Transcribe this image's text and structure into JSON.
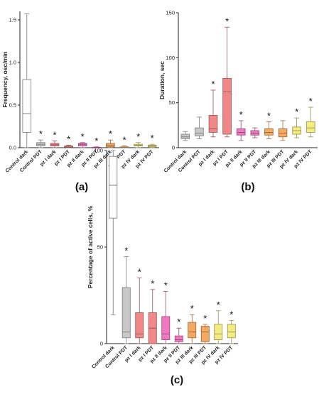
{
  "chart_data": [
    {
      "type": "box",
      "panel_label": "(a)",
      "ylabel": "Frequency, osc/min",
      "ylim": [
        0,
        1.6
      ],
      "yticks": [
        "0.0",
        "0.5",
        "1.0",
        "1.5"
      ],
      "ytick_values": [
        0,
        0.5,
        1.0,
        1.5
      ],
      "categories": [
        "Control dark",
        "Control PDT",
        "pz I dark",
        "pz I PDT",
        "pz II dark",
        "pz II PDT",
        "pz III dark",
        "pz III PDT",
        "pz IV dark",
        "pz IV PDT"
      ],
      "colors": [
        "#ffffff",
        "#c8c8c8",
        "#f08888",
        "#f08888",
        "#f078c0",
        "#f078c0",
        "#f4a860",
        "#f4a860",
        "#f4ec80",
        "#f4ec80"
      ],
      "boxes": [
        {
          "min": 0.0,
          "q1": 0.18,
          "median": 0.4,
          "q3": 0.8,
          "max": 1.57
        },
        {
          "min": 0.0,
          "q1": 0.02,
          "median": 0.04,
          "q3": 0.06,
          "max": 0.09
        },
        {
          "min": 0.0,
          "q1": 0.02,
          "median": 0.035,
          "q3": 0.05,
          "max": 0.08
        },
        {
          "min": 0.0,
          "q1": 0.005,
          "median": 0.01,
          "q3": 0.02,
          "max": 0.03
        },
        {
          "min": 0.0,
          "q1": 0.02,
          "median": 0.04,
          "q3": 0.05,
          "max": 0.06
        },
        {
          "min": 0.0,
          "q1": 0.0,
          "median": 0.0,
          "q3": 0.005,
          "max": 0.01
        },
        {
          "min": 0.0,
          "q1": 0.01,
          "median": 0.03,
          "q3": 0.05,
          "max": 0.09
        },
        {
          "min": 0.0,
          "q1": 0.0,
          "median": 0.005,
          "q3": 0.01,
          "max": 0.02
        },
        {
          "min": 0.0,
          "q1": 0.02,
          "median": 0.03,
          "q3": 0.04,
          "max": 0.06
        },
        {
          "min": 0.0,
          "q1": 0.01,
          "median": 0.02,
          "q3": 0.03,
          "max": 0.04
        }
      ],
      "significant": [
        false,
        true,
        true,
        true,
        true,
        true,
        true,
        true,
        true,
        true
      ],
      "star_label": "*"
    },
    {
      "type": "box",
      "panel_label": "(b)",
      "ylabel": "Duration, sec",
      "ylim": [
        0,
        150
      ],
      "yticks": [
        "0",
        "50",
        "100",
        "150"
      ],
      "ytick_values": [
        0,
        50,
        100,
        150
      ],
      "categories": [
        "Control dark",
        "Control PDT",
        "pz I dark",
        "pz I PDT",
        "pz II dark",
        "pz II PDT",
        "pz III dark",
        "pz III PDT",
        "pz IV dark",
        "pz IV PDT"
      ],
      "colors": [
        "#c8c8c8",
        "#c8c8c8",
        "#f08888",
        "#f08888",
        "#f078c0",
        "#f078c0",
        "#f4a860",
        "#f4a860",
        "#f4ec80",
        "#f4ec80"
      ],
      "boxes": [
        {
          "min": 8,
          "q1": 10,
          "median": 12,
          "q3": 15,
          "max": 18
        },
        {
          "min": 10,
          "q1": 13,
          "median": 16,
          "q3": 22,
          "max": 34
        },
        {
          "min": 12,
          "q1": 17,
          "median": 21,
          "q3": 36,
          "max": 64
        },
        {
          "min": 12,
          "q1": 15,
          "median": 62,
          "q3": 77,
          "max": 134
        },
        {
          "min": 8,
          "q1": 14,
          "median": 17,
          "q3": 21,
          "max": 30
        },
        {
          "min": 11,
          "q1": 14,
          "median": 16,
          "q3": 19,
          "max": 22
        },
        {
          "min": 10,
          "q1": 14,
          "median": 17,
          "q3": 21,
          "max": 29
        },
        {
          "min": 8,
          "q1": 12,
          "median": 16,
          "q3": 21,
          "max": 30
        },
        {
          "min": 11,
          "q1": 15,
          "median": 19,
          "q3": 23,
          "max": 33
        },
        {
          "min": 12,
          "q1": 17,
          "median": 22,
          "q3": 29,
          "max": 45
        }
      ],
      "significant": [
        false,
        false,
        true,
        true,
        true,
        false,
        true,
        false,
        true,
        true
      ],
      "star_label": "*"
    },
    {
      "type": "box",
      "panel_label": "(c)",
      "ylabel": "Percentage of active cells, %",
      "ylim": [
        0,
        100
      ],
      "yticks": [
        "0",
        "50",
        "100"
      ],
      "ytick_values": [
        0,
        50,
        100
      ],
      "categories": [
        "Control dark",
        "Control PDT",
        "pz I dark",
        "pz I PDT",
        "pz II dark",
        "pz II PDT",
        "pz III dark",
        "pz III PDT",
        "pz IV dark",
        "pz IV PDT"
      ],
      "colors": [
        "#ffffff",
        "#c8c8c8",
        "#f08888",
        "#f08888",
        "#f078c0",
        "#f078c0",
        "#f4a860",
        "#f4a860",
        "#f4ec80",
        "#f4ec80"
      ],
      "boxes": [
        {
          "min": 15,
          "q1": 65,
          "median": 82,
          "q3": 97,
          "max": 100
        },
        {
          "min": 0,
          "q1": 3,
          "median": 6,
          "q3": 29,
          "max": 45
        },
        {
          "min": 0,
          "q1": 3,
          "median": 5,
          "q3": 16,
          "max": 34
        },
        {
          "min": 0,
          "q1": 0,
          "median": 8,
          "q3": 16,
          "max": 28
        },
        {
          "min": 0,
          "q1": 2,
          "median": 5,
          "q3": 14,
          "max": 27
        },
        {
          "min": 0,
          "q1": 1,
          "median": 2,
          "q3": 4,
          "max": 8
        },
        {
          "min": 0,
          "q1": 3,
          "median": 6,
          "q3": 11,
          "max": 15
        },
        {
          "min": 0,
          "q1": 1,
          "median": 6,
          "q3": 9,
          "max": 10
        },
        {
          "min": 0,
          "q1": 2,
          "median": 5,
          "q3": 10,
          "max": 17
        },
        {
          "min": 0,
          "q1": 3,
          "median": 6,
          "q3": 10,
          "max": 12
        }
      ],
      "significant": [
        false,
        true,
        true,
        true,
        true,
        true,
        true,
        true,
        true,
        true
      ],
      "star_label": "*"
    }
  ]
}
